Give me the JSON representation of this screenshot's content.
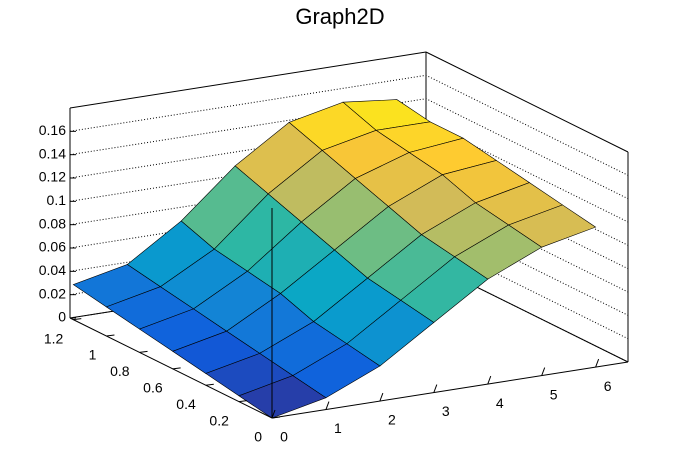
{
  "chart_data": {
    "type": "surface",
    "title": "Graph2D",
    "x": [
      0,
      1,
      2,
      3,
      4,
      5,
      6
    ],
    "y": [
      0,
      0.2,
      0.4,
      0.6,
      0.8,
      1,
      1.2
    ],
    "z": [
      [
        0,
        0.01,
        0.03,
        0.06,
        0.09,
        0.11,
        0.12
      ],
      [
        0.005,
        0.015,
        0.035,
        0.065,
        0.095,
        0.115,
        0.125
      ],
      [
        0.01,
        0.02,
        0.04,
        0.07,
        0.1,
        0.12,
        0.13
      ],
      [
        0.015,
        0.025,
        0.05,
        0.08,
        0.11,
        0.13,
        0.135
      ],
      [
        0.02,
        0.03,
        0.055,
        0.09,
        0.12,
        0.135,
        0.14
      ],
      [
        0.025,
        0.035,
        0.06,
        0.1,
        0.13,
        0.14,
        0.14
      ],
      [
        0.03,
        0.04,
        0.07,
        0.11,
        0.14,
        0.15,
        0.145
      ]
    ],
    "xlim": [
      0,
      6.6
    ],
    "ylim": [
      0,
      1.22
    ],
    "zlim": [
      0,
      0.18
    ],
    "xticks": [
      0,
      1,
      2,
      3,
      4,
      5,
      6
    ],
    "yticks": [
      0,
      0.2,
      0.4,
      0.6,
      0.8,
      1,
      1.2
    ],
    "zticks": [
      0,
      0.02,
      0.04,
      0.06,
      0.08,
      0.1,
      0.12,
      0.14,
      0.16
    ],
    "grid": true,
    "colormap": [
      "#352a87",
      "#0f5cdd",
      "#1481d6",
      "#06a4ca",
      "#2eb7a4",
      "#87bf77",
      "#d1bb59",
      "#fec832",
      "#f9fb0e"
    ]
  }
}
